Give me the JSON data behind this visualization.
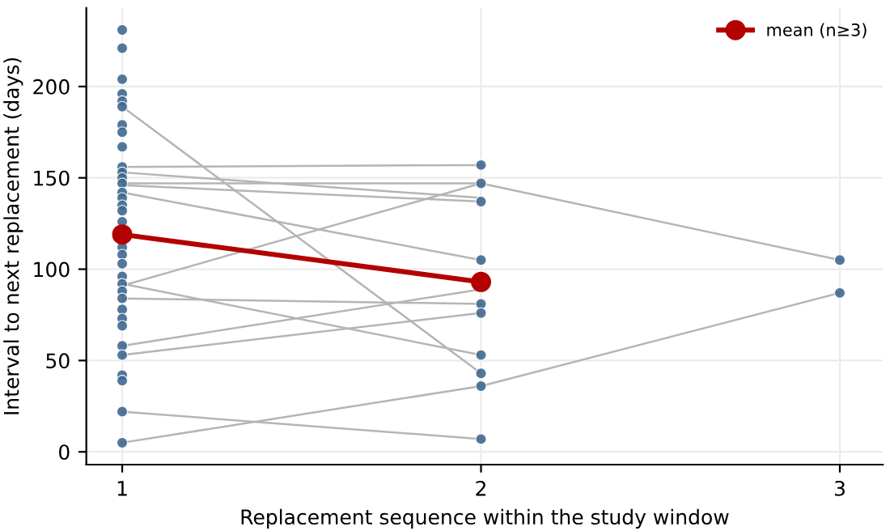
{
  "chart_data": {
    "type": "scatter",
    "xlabel": "Replacement sequence within the study window",
    "ylabel": "Interval to next replacement (days)",
    "xlim": [
      0.9,
      3.12
    ],
    "xticks": [
      1,
      2,
      3
    ],
    "ylim": [
      -7,
      243
    ],
    "yticks": [
      0,
      50,
      100,
      150,
      200
    ],
    "grid": true,
    "legend": "top right",
    "series": [
      {
        "type": "line",
        "color": "#b5b5b5",
        "x": [
          1,
          2
        ],
        "values": [
          189,
          43
        ]
      },
      {
        "type": "line",
        "color": "#b5b5b5",
        "x": [
          1,
          2
        ],
        "values": [
          156,
          157
        ]
      },
      {
        "type": "line",
        "color": "#b5b5b5",
        "x": [
          1,
          2
        ],
        "values": [
          153,
          139
        ]
      },
      {
        "type": "line",
        "color": "#b5b5b5",
        "x": [
          1,
          2
        ],
        "values": [
          147,
          147
        ]
      },
      {
        "type": "line",
        "color": "#b5b5b5",
        "x": [
          1,
          2
        ],
        "values": [
          146,
          137
        ]
      },
      {
        "type": "line",
        "color": "#b5b5b5",
        "x": [
          1,
          2
        ],
        "values": [
          142,
          105
        ]
      },
      {
        "type": "line",
        "color": "#b5b5b5",
        "x": [
          1,
          2,
          3
        ],
        "values": [
          91,
          147,
          105
        ]
      },
      {
        "type": "line",
        "color": "#b5b5b5",
        "x": [
          1,
          2
        ],
        "values": [
          92,
          53
        ]
      },
      {
        "type": "line",
        "color": "#b5b5b5",
        "x": [
          1,
          2
        ],
        "values": [
          84,
          81
        ]
      },
      {
        "type": "line",
        "color": "#b5b5b5",
        "x": [
          1,
          2
        ],
        "values": [
          58,
          89
        ]
      },
      {
        "type": "line",
        "color": "#b5b5b5",
        "x": [
          1,
          2
        ],
        "values": [
          53,
          76
        ]
      },
      {
        "type": "line",
        "color": "#b5b5b5",
        "x": [
          1,
          2
        ],
        "values": [
          22,
          7
        ]
      },
      {
        "type": "line",
        "color": "#b5b5b5",
        "x": [
          1,
          2,
          3
        ],
        "values": [
          5,
          36,
          87
        ]
      },
      {
        "color": "#3f6890",
        "x": [
          1,
          1,
          1,
          1,
          1,
          1,
          1,
          1,
          1,
          1,
          1,
          1,
          1,
          1,
          1,
          1,
          1,
          1,
          1,
          1,
          1,
          1,
          1,
          1,
          1,
          1,
          1,
          1,
          1,
          1,
          1,
          1,
          1,
          1
        ],
        "values": [
          231,
          221,
          204,
          196,
          192,
          189,
          179,
          175,
          167,
          156,
          153,
          150,
          147,
          142,
          139,
          135,
          132,
          126,
          112,
          108,
          103,
          96,
          92,
          88,
          84,
          78,
          73,
          69,
          58,
          53,
          42,
          39,
          22,
          5
        ]
      },
      {
        "color": "#3f6890",
        "x": [
          2,
          2,
          2,
          2,
          2,
          2,
          2,
          2,
          2,
          2
        ],
        "values": [
          157,
          147,
          137,
          105,
          81,
          76,
          53,
          43,
          36,
          7
        ]
      },
      {
        "color": "#3f6890",
        "x": [
          3,
          3
        ],
        "values": [
          105,
          87
        ]
      },
      {
        "type": "line",
        "name": "mean (n≥3)",
        "color": "#b30000",
        "marker": "circle",
        "x": [
          1,
          2
        ],
        "values": [
          119,
          93
        ]
      }
    ]
  }
}
